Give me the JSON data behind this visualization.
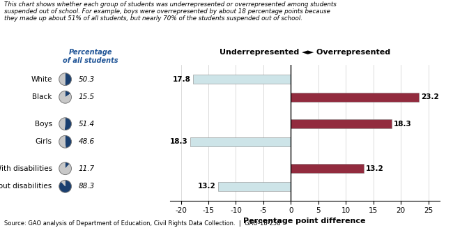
{
  "categories": [
    "White",
    "Black",
    "Boys",
    "Girls",
    "With disabilities",
    "Without disabilities"
  ],
  "values": [
    -17.8,
    23.2,
    18.3,
    -18.3,
    13.2,
    -13.2
  ],
  "percentages": [
    "50.3",
    "15.5",
    "51.4",
    "48.6",
    "11.7",
    "88.3"
  ],
  "pie_fills": [
    0.503,
    0.155,
    0.514,
    0.486,
    0.117,
    0.883
  ],
  "bar_color_negative": "#cde4e8",
  "bar_color_positive": "#922b3e",
  "xlim": [
    -22,
    27
  ],
  "xticks": [
    -20,
    -15,
    -10,
    -5,
    0,
    5,
    10,
    15,
    20,
    25
  ],
  "xlabel": "Percentage point difference",
  "direction_label": "Underrepresented ◄► Overrepresented",
  "title_text": "This chart shows whether each group of students was underrepresented or overrepresented among students\nsuspended out of school. For example, boys were overrepresented by about 18 percentage points because\nthey made up about 51% of all students, but nearly 70% of the students suspended out of school.",
  "source_text": "Source: GAO analysis of Department of Education, Civil Rights Data Collection.  |  GAO-18-258",
  "header_color": "#1f5496",
  "pie_blue": "#1a3f6f",
  "pie_grey": "#c8c8c8",
  "y_positions": [
    7,
    6,
    4.5,
    3.5,
    2,
    1
  ],
  "figsize": [
    6.5,
    3.27
  ],
  "dpi": 100
}
